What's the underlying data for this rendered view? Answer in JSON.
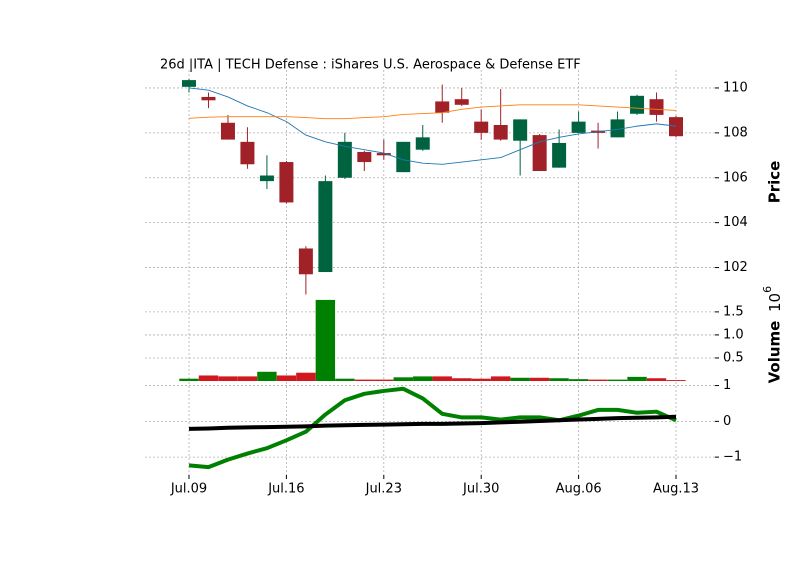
{
  "chart_data": [
    {
      "type": "candlestick",
      "title": "26d |ITA | TECH Defense : iShares U.S. Aerospace & Defense ETF",
      "ylabel": "Price",
      "open": [
        110.05,
        109.6,
        108.45,
        107.6,
        105.85,
        106.7,
        102.85,
        101.8,
        106.0,
        107.15,
        107.1,
        106.25,
        107.25,
        109.4,
        109.5,
        108.5,
        108.35,
        107.65,
        107.9,
        106.45,
        108.0,
        108.1,
        107.8,
        108.85,
        109.5,
        108.7
      ],
      "high": [
        110.4,
        109.8,
        108.8,
        108.25,
        107.0,
        106.75,
        102.95,
        106.1,
        108.0,
        107.2,
        107.7,
        107.6,
        108.35,
        110.15,
        110.0,
        109.05,
        109.95,
        108.6,
        107.95,
        108.15,
        108.95,
        108.45,
        108.95,
        109.7,
        109.8,
        108.75
      ],
      "low": [
        109.8,
        109.1,
        107.7,
        106.4,
        105.5,
        104.85,
        100.8,
        101.8,
        105.95,
        106.3,
        106.8,
        106.25,
        107.2,
        108.45,
        109.2,
        107.7,
        107.65,
        106.1,
        106.3,
        106.45,
        108.0,
        107.3,
        107.8,
        108.8,
        108.5,
        107.8
      ],
      "close": [
        110.35,
        109.45,
        107.7,
        106.6,
        106.1,
        104.9,
        101.7,
        105.85,
        107.6,
        106.7,
        107.0,
        107.6,
        107.8,
        108.9,
        109.25,
        108.0,
        107.7,
        108.6,
        106.3,
        107.55,
        108.5,
        108.0,
        108.6,
        109.65,
        108.8,
        107.85
      ],
      "up_color": "#006340",
      "down_color": "#a02128",
      "series": [
        {
          "color": "#1f77b4",
          "values": [
            110.0,
            109.9,
            109.6,
            109.2,
            108.9,
            108.5,
            107.9,
            107.6,
            107.4,
            107.25,
            107.1,
            106.8,
            106.65,
            106.6,
            106.7,
            106.8,
            106.9,
            107.25,
            107.6,
            107.8,
            107.95,
            108.05,
            108.15,
            108.3,
            108.4,
            108.3
          ]
        },
        {
          "color": "#ff7f0e",
          "values": [
            108.65,
            108.7,
            108.72,
            108.72,
            108.72,
            108.72,
            108.68,
            108.63,
            108.63,
            108.68,
            108.72,
            108.82,
            108.86,
            108.9,
            109.05,
            109.15,
            109.2,
            109.25,
            109.25,
            109.25,
            109.25,
            109.2,
            109.15,
            109.1,
            109.05,
            109.0
          ]
        }
      ],
      "ylim": [
        101,
        110.8
      ],
      "yticks": [
        102,
        104,
        106,
        108,
        110
      ],
      "grid": true
    },
    {
      "type": "bar",
      "ylabel": "Volume",
      "scale_base": "10",
      "scale_exponent": "6",
      "values": [
        0.05,
        0.12,
        0.1,
        0.1,
        0.2,
        0.12,
        0.18,
        1.76,
        0.05,
        0.03,
        0.03,
        0.08,
        0.1,
        0.1,
        0.06,
        0.05,
        0.1,
        0.07,
        0.07,
        0.06,
        0.04,
        0.03,
        0.03,
        0.09,
        0.06,
        0.02
      ],
      "up_color": "#008000",
      "down_color": "#d0181e",
      "ylim": [
        0,
        1.91
      ],
      "yticks": [
        0.5,
        {
          "value": 1,
          "label": "1.0"
        },
        1.5
      ],
      "grid": true
    },
    {
      "type": "line",
      "categories": [
        "Jul.09",
        null,
        null,
        null,
        null,
        "Jul.16",
        null,
        null,
        null,
        null,
        "Jul.23",
        null,
        null,
        null,
        null,
        "Jul.30",
        null,
        null,
        null,
        null,
        "Aug.06",
        null,
        null,
        null,
        null,
        "Aug.13"
      ],
      "series": [
        {
          "color": "#008000",
          "values": [
            -1.23,
            -1.28,
            -1.07,
            -0.9,
            -0.75,
            -0.53,
            -0.29,
            0.19,
            0.59,
            0.77,
            0.85,
            0.91,
            0.64,
            0.21,
            0.11,
            0.11,
            0.05,
            0.11,
            0.11,
            0.03,
            0.16,
            0.32,
            0.32,
            0.24,
            0.27,
            0.03
          ]
        },
        {
          "color": "#000000",
          "values": [
            -0.21,
            -0.2,
            -0.18,
            -0.17,
            -0.16,
            -0.15,
            -0.14,
            -0.12,
            -0.11,
            -0.1,
            -0.09,
            -0.08,
            -0.07,
            -0.07,
            -0.06,
            -0.05,
            -0.03,
            -0.01,
            0.01,
            0.03,
            0.05,
            0.07,
            0.09,
            0.1,
            0.11,
            0.13
          ]
        }
      ],
      "ylim": [
        -1.5,
        1.1
      ],
      "yticks": [
        {
          "value": -1,
          "label": "−1"
        },
        0,
        1
      ],
      "grid": true
    }
  ]
}
